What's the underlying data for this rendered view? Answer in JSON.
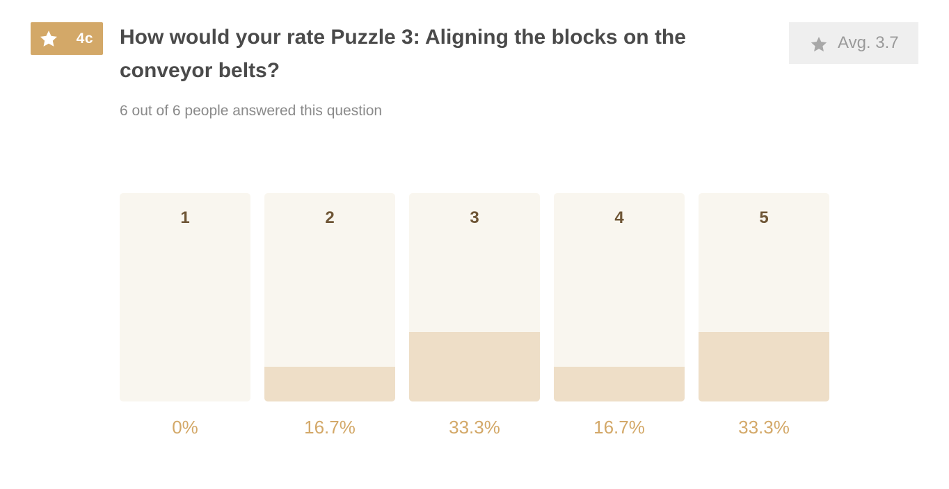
{
  "badge": {
    "icon": "star-icon",
    "code": "4c",
    "color": "#d3a868"
  },
  "question": {
    "title": "How would your rate Puzzle 3: Aligning the blocks on the conveyor belts?",
    "answered": "6 out of 6 people answered this question"
  },
  "average": {
    "icon": "star-icon",
    "label": "Avg. 3.7"
  },
  "chart_data": {
    "type": "bar",
    "categories": [
      "1",
      "2",
      "3",
      "4",
      "5"
    ],
    "values": [
      0,
      16.7,
      33.3,
      16.7,
      33.3
    ],
    "value_labels": [
      "0%",
      "16.7%",
      "33.3%",
      "16.7%",
      "33.3%"
    ],
    "ylim": [
      0,
      100
    ],
    "grid": false,
    "colors": {
      "track": "#f9f6ef",
      "fill": "#eedec7",
      "category_text": "#6e5535",
      "percent_text": "#d3a868"
    }
  }
}
